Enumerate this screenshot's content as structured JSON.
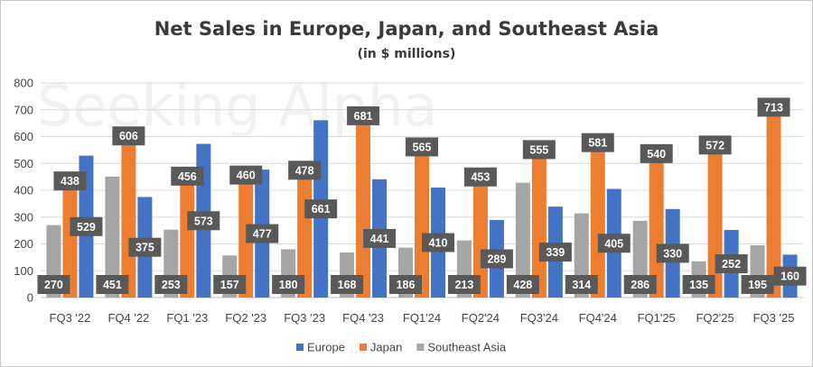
{
  "chart_data": {
    "type": "bar",
    "title": "Net Sales in Europe, Japan, and Southeast Asia",
    "subtitle": "(in $ millions)",
    "watermark": "Seeking Alpha",
    "categories": [
      "FQ3 '22",
      "FQ4 '22",
      "FQ1 '23",
      "FQ2 '23",
      "FQ3 '23",
      "FQ4 '23",
      "FQ1'24",
      "FQ2'24",
      "FQ3'24",
      "FQ4'24",
      "FQ1'25",
      "FQ2'25",
      "FQ3 '25"
    ],
    "series": [
      {
        "name": "Southeast Asia",
        "color": "#a5a5a5",
        "values": [
          270,
          451,
          253,
          157,
          180,
          168,
          186,
          213,
          428,
          314,
          286,
          135,
          195
        ]
      },
      {
        "name": "Japan",
        "color": "#ed7d31",
        "values": [
          438,
          606,
          456,
          460,
          478,
          681,
          565,
          453,
          555,
          581,
          540,
          572,
          713
        ]
      },
      {
        "name": "Europe",
        "color": "#4472c4",
        "values": [
          529,
          375,
          573,
          477,
          661,
          441,
          410,
          289,
          339,
          405,
          330,
          252,
          160
        ]
      }
    ],
    "legend_order": [
      "Europe",
      "Japan",
      "Southeast Asia"
    ],
    "legend_position": "bottom",
    "ylim": [
      0,
      800
    ],
    "yticks": [
      "0",
      "100",
      "200",
      "300",
      "400",
      "500",
      "600",
      "700",
      "800"
    ],
    "grid": true,
    "xlabel": "",
    "ylabel": "",
    "data_label_color": "#595959"
  }
}
